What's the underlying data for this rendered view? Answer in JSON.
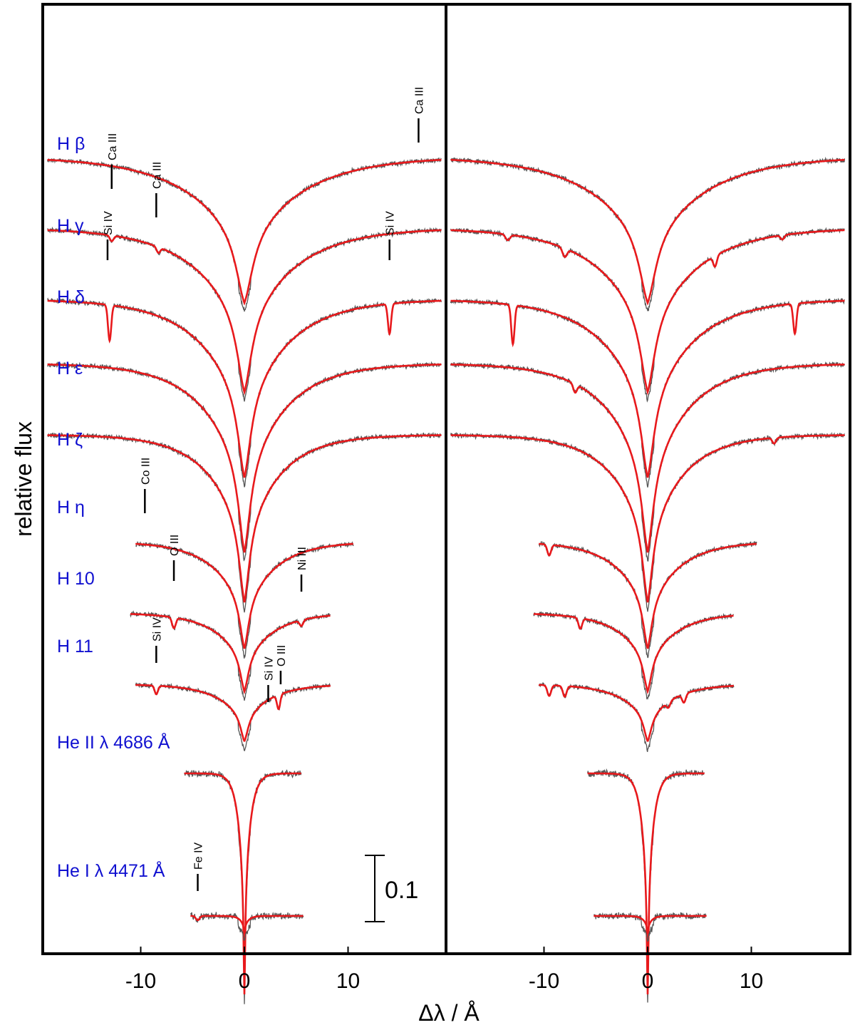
{
  "chart_data": {
    "type": "line",
    "xlabel": "Δλ / Å",
    "ylabel": "relative flux",
    "xlim": [
      -19,
      19
    ],
    "x_ticks": [
      -10,
      0,
      10
    ],
    "x_tick_labels": [
      "-10",
      "0",
      "10"
    ],
    "scale_bar_label": "0.1",
    "colors": {
      "observed": "#555555",
      "model": "#e8191c",
      "label": "#1010d0",
      "frame": "#000000"
    },
    "panels": 2,
    "lines": [
      {
        "label": "H β",
        "continuum": 1.5,
        "depth": 2.05,
        "width": 5.5,
        "xmin": -19,
        "xmax": 19,
        "label_y": 1.4
      },
      {
        "label": "H γ",
        "continuum": 2.5,
        "depth": 2.3,
        "width": 4.8,
        "xmin": -19,
        "xmax": 19,
        "label_y": 2.55
      },
      {
        "label": "H δ",
        "continuum": 3.5,
        "depth": 2.5,
        "width": 4.3,
        "xmin": -19,
        "xmax": 19,
        "label_y": 3.55
      },
      {
        "label": "H ε",
        "continuum": 4.4,
        "depth": 2.65,
        "width": 3.9,
        "xmin": -19,
        "xmax": 19,
        "label_y": 4.55
      },
      {
        "label": "H ζ",
        "continuum": 5.4,
        "depth": 2.35,
        "width": 3.4,
        "xmin": -19,
        "xmax": 19,
        "label_y": 5.55
      },
      {
        "label": "H η",
        "continuum": 6.9,
        "depth": 1.5,
        "width": 3.0,
        "xmin": -10.5,
        "xmax": 10.5,
        "label_y": 6.5
      },
      {
        "label": "H 10",
        "continuum": 7.9,
        "depth": 1.1,
        "width": 2.8,
        "xmin": -11,
        "xmax": 8.3,
        "label_y": 7.5
      },
      {
        "label": "H 11",
        "continuum": 8.9,
        "depth": 0.8,
        "width": 2.6,
        "xmin": -10.5,
        "xmax": 8.3,
        "label_y": 8.45
      },
      {
        "label": "He II λ 4686 Å",
        "continuum": 10.15,
        "depth": 3.1,
        "width": 0.55,
        "xmin": -5.8,
        "xmax": 5.5,
        "label_y": 9.8
      },
      {
        "label": "He I λ 4471 Å",
        "continuum": 12.15,
        "depth": 0.25,
        "width": 0.4,
        "xmin": -5.2,
        "xmax": 5.7,
        "label_y": 11.6
      }
    ],
    "ion_marks": [
      {
        "text": "Ca III",
        "line": 1,
        "x": -12.8,
        "y_top": 1.55,
        "y_bot": 1.95
      },
      {
        "text": "Ca III",
        "line": 1,
        "x": -8.5,
        "y_top": 1.95,
        "y_bot": 2.35
      },
      {
        "text": "Ca III",
        "line": 0,
        "x": 16.8,
        "y_top": 0.9,
        "y_bot": 1.3
      },
      {
        "text": "Si IV",
        "line": 2,
        "x": -13.2,
        "y_top": 2.6,
        "y_bot": 2.95
      },
      {
        "text": "Si IV",
        "line": 2,
        "x": 14.0,
        "y_top": 2.6,
        "y_bot": 2.95
      },
      {
        "text": "Co III",
        "line": 5,
        "x": -9.6,
        "y_top": 6.1,
        "y_bot": 6.5
      },
      {
        "text": "O III",
        "line": 6,
        "x": -6.8,
        "y_top": 7.1,
        "y_bot": 7.45
      },
      {
        "text": "Ni III",
        "line": 6,
        "x": 5.5,
        "y_top": 7.3,
        "y_bot": 7.6
      },
      {
        "text": "Si IV",
        "line": 7,
        "x": -8.5,
        "y_top": 8.3,
        "y_bot": 8.6
      },
      {
        "text": "Si IV",
        "line": 7,
        "x": 2.3,
        "y_top": 8.85,
        "y_bot": 9.15
      },
      {
        "text": "O III",
        "line": 7,
        "x": 3.5,
        "y_top": 8.65,
        "y_bot": 8.9
      },
      {
        "text": "Fe IV",
        "line": 9,
        "x": -4.5,
        "y_top": 11.5,
        "y_bot": 11.8
      }
    ],
    "metal_features": {
      "left": [
        {
          "line": 1,
          "x": -12.8,
          "d": 0.08,
          "w": 0.25
        },
        {
          "line": 1,
          "x": -8.3,
          "d": 0.08,
          "w": 0.25
        },
        {
          "line": 2,
          "x": -13.0,
          "d": 0.5,
          "w": 0.22
        },
        {
          "line": 2,
          "x": 14.0,
          "d": 0.42,
          "w": 0.22
        },
        {
          "line": 6,
          "x": -6.8,
          "d": 0.15,
          "w": 0.25
        },
        {
          "line": 6,
          "x": 5.5,
          "d": 0.08,
          "w": 0.25
        },
        {
          "line": 7,
          "x": -8.5,
          "d": 0.12,
          "w": 0.22
        },
        {
          "line": 7,
          "x": 3.3,
          "d": 0.2,
          "w": 0.22
        },
        {
          "line": 9,
          "x": -4.5,
          "d": 0.06,
          "w": 0.25
        }
      ],
      "right": [
        {
          "line": 1,
          "x": -13.5,
          "d": 0.08,
          "w": 0.3
        },
        {
          "line": 1,
          "x": -8.0,
          "d": 0.12,
          "w": 0.3
        },
        {
          "line": 1,
          "x": 6.5,
          "d": 0.15,
          "w": 0.25
        },
        {
          "line": 1,
          "x": 13.0,
          "d": 0.06,
          "w": 0.25
        },
        {
          "line": 2,
          "x": -13.0,
          "d": 0.55,
          "w": 0.22
        },
        {
          "line": 2,
          "x": 14.2,
          "d": 0.42,
          "w": 0.22
        },
        {
          "line": 3,
          "x": -7.0,
          "d": 0.12,
          "w": 0.25
        },
        {
          "line": 4,
          "x": 12.2,
          "d": 0.08,
          "w": 0.25
        },
        {
          "line": 5,
          "x": -9.5,
          "d": 0.15,
          "w": 0.25
        },
        {
          "line": 6,
          "x": -6.5,
          "d": 0.15,
          "w": 0.25
        },
        {
          "line": 7,
          "x": -9.5,
          "d": 0.15,
          "w": 0.25
        },
        {
          "line": 7,
          "x": -8.0,
          "d": 0.15,
          "w": 0.25
        },
        {
          "line": 7,
          "x": 2.0,
          "d": 0.08,
          "w": 0.25
        },
        {
          "line": 7,
          "x": 3.5,
          "d": 0.12,
          "w": 0.25
        }
      ]
    }
  }
}
